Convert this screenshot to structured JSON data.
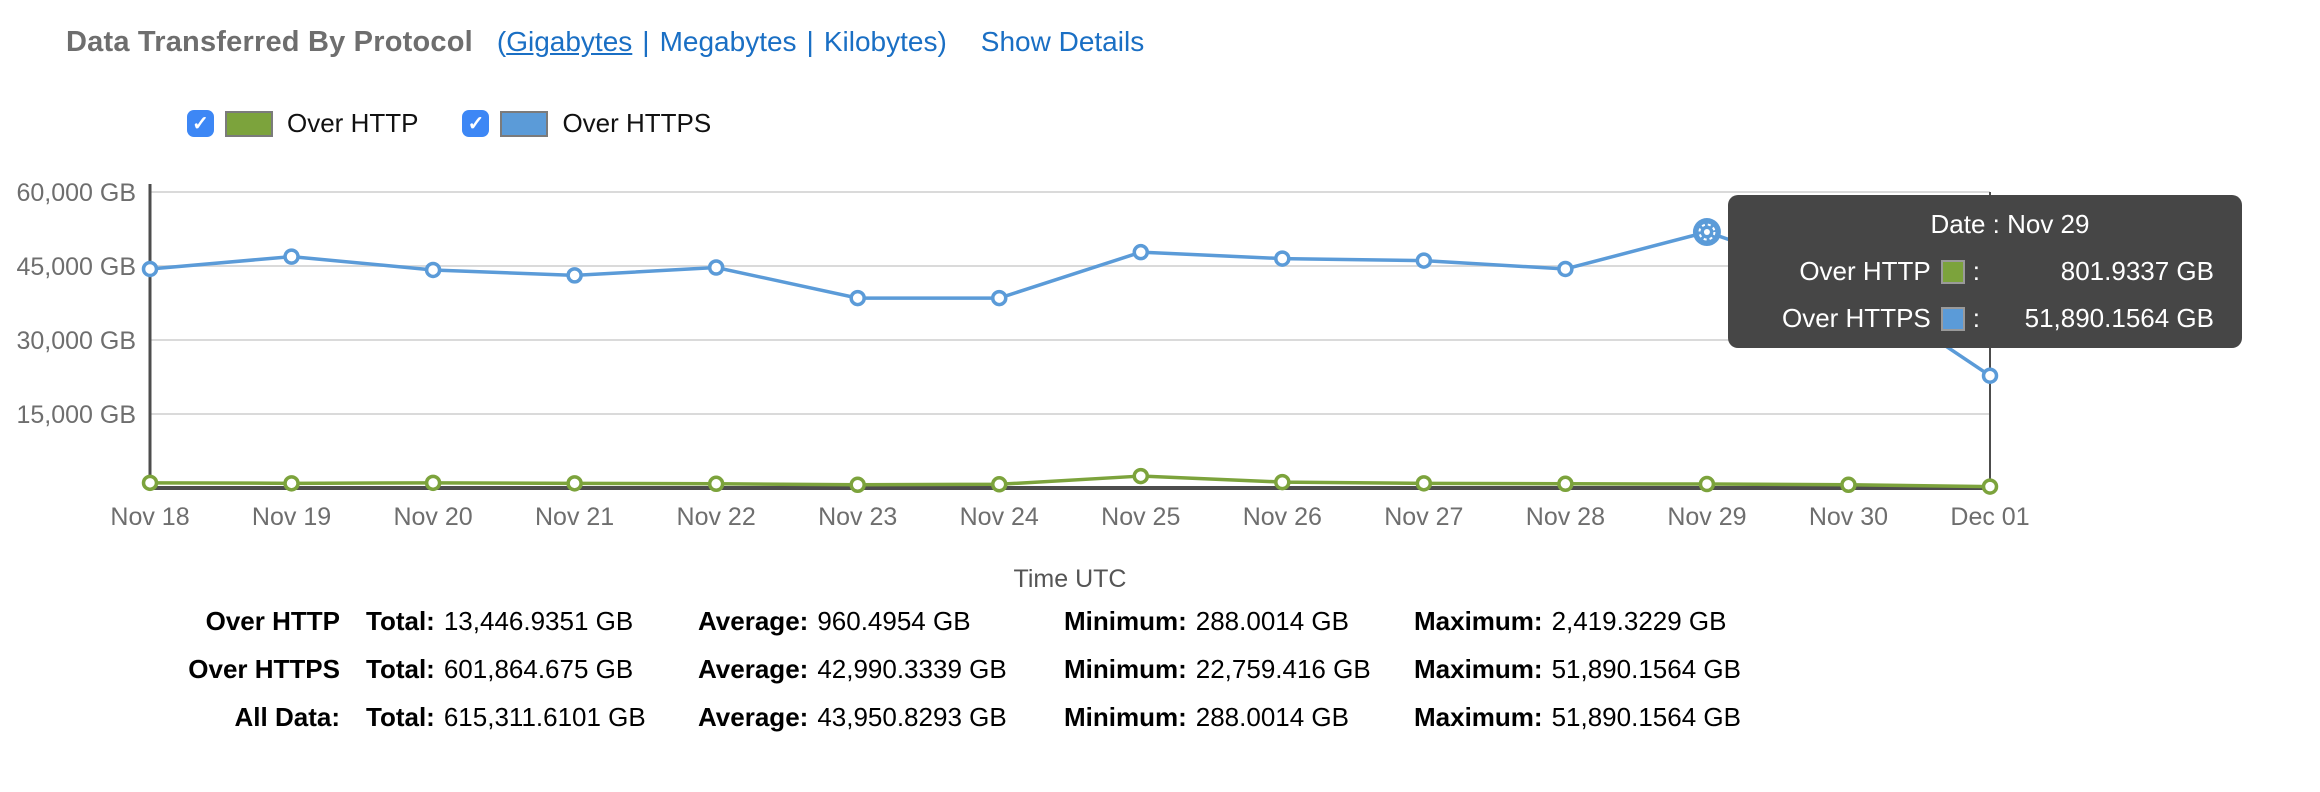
{
  "header": {
    "title": "Data Transferred By Protocol",
    "units": {
      "open_paren": "(",
      "gigabytes": "Gigabytes",
      "megabytes": "Megabytes",
      "kilobytes": "Kilobytes",
      "separator": "|",
      "close_paren": ")",
      "active_unit": "Gigabytes"
    },
    "show_details": "Show Details"
  },
  "legend": [
    {
      "label": "Over HTTP",
      "checked": true,
      "color": "#7ca33c"
    },
    {
      "label": "Over HTTPS",
      "checked": true,
      "color": "#5b9bd8"
    }
  ],
  "chart_data": {
    "type": "line",
    "title": "Data Transferred By Protocol",
    "x": [
      "Nov 18",
      "Nov 19",
      "Nov 20",
      "Nov 21",
      "Nov 22",
      "Nov 23",
      "Nov 24",
      "Nov 25",
      "Nov 26",
      "Nov 27",
      "Nov 28",
      "Nov 29",
      "Nov 30",
      "Dec 01"
    ],
    "series": [
      {
        "name": "Over HTTP",
        "color": "#7ca33c",
        "values": [
          1050,
          950,
          1050,
          950,
          850,
          650,
          750,
          2419.3229,
          1200,
          950,
          850,
          801.9337,
          650,
          288.0014
        ]
      },
      {
        "name": "Over HTTPS",
        "color": "#5b9bd8",
        "values": [
          44400,
          46900,
          44200,
          43100,
          44700,
          38500,
          38500,
          47800,
          46500,
          46100,
          44400,
          51890.1564,
          42000,
          22759.416
        ]
      }
    ],
    "xlabel": "Time UTC",
    "ylabel": "",
    "ylim": [
      0,
      60000
    ],
    "yticks": [
      {
        "value": 15000,
        "label": "15,000 GB"
      },
      {
        "value": 30000,
        "label": "30,000 GB"
      },
      {
        "value": 45000,
        "label": "45,000 GB"
      },
      {
        "value": 60000,
        "label": "60,000 GB"
      }
    ],
    "grid": true,
    "legend_position": "top",
    "highlight": {
      "series": "Over HTTPS",
      "x": "Nov 29"
    }
  },
  "tooltip": {
    "date_label": "Date : Nov 29",
    "rows": [
      {
        "name": "Over HTTP",
        "color": "#7ca33c",
        "value": "801.9337 GB"
      },
      {
        "name": "Over HTTPS",
        "color": "#5b9bd8",
        "value": "51,890.1564 GB"
      }
    ]
  },
  "summary": {
    "stat_labels": {
      "total": "Total:",
      "average": "Average:",
      "minimum": "Minimum:",
      "maximum": "Maximum:"
    },
    "rows": [
      {
        "label": "Over HTTP",
        "total": "13,446.9351 GB",
        "average": "960.4954 GB",
        "minimum": "288.0014 GB",
        "maximum": "2,419.3229 GB"
      },
      {
        "label": "Over HTTPS",
        "total": "601,864.675 GB",
        "average": "42,990.3339 GB",
        "minimum": "22,759.416 GB",
        "maximum": "51,890.1564 GB"
      },
      {
        "label": "All Data:",
        "total": "615,311.6101 GB",
        "average": "43,950.8293 GB",
        "minimum": "288.0014 GB",
        "maximum": "51,890.1564 GB"
      }
    ]
  }
}
